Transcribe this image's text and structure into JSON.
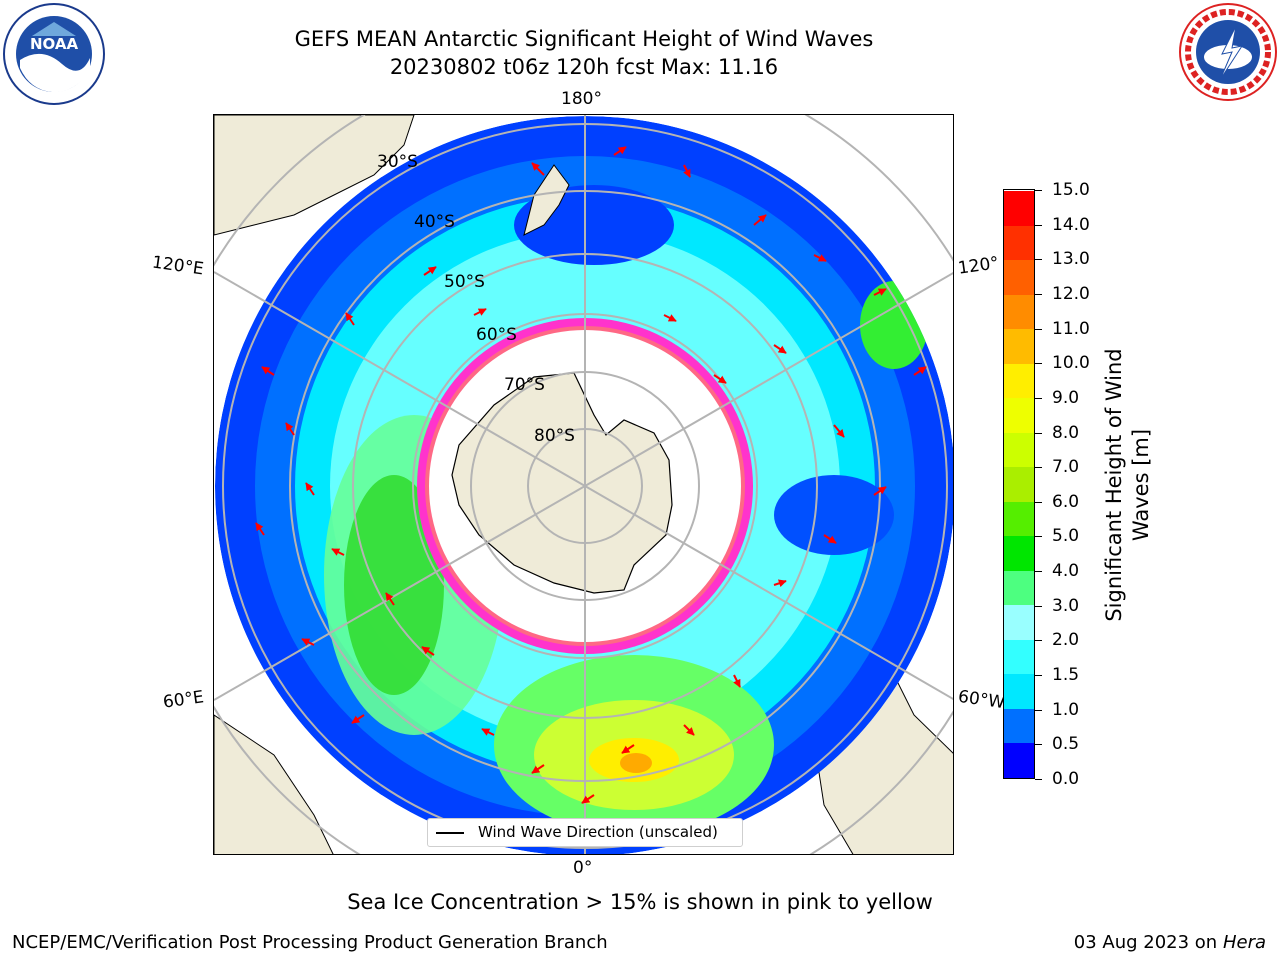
{
  "header": {
    "title_line1": "GEFS MEAN Antarctic Significant Height of Wind Waves",
    "title_line2": "20230802 t06z 120h fcst   Max: 11.16"
  },
  "logos": {
    "left": "NOAA logo",
    "right": "National Weather Service logo"
  },
  "map": {
    "projection": "south-polar-stereographic",
    "lon_labels": [
      "180°",
      "120°E",
      "120°",
      "60°E",
      "60°W",
      "0°"
    ],
    "lat_labels": [
      "30°S",
      "40°S",
      "50°S",
      "60°S",
      "70°S",
      "80°S"
    ],
    "legend_label": "Wind Wave Direction (unscaled)",
    "arrow_color": "#ff0000",
    "land_color": "#efebd8",
    "sea_ice_colors": [
      "#ff33cc",
      "#ffcc00"
    ]
  },
  "colorbar": {
    "title": "Significant Height of Wind Waves [m]",
    "tick_labels": [
      "0.0",
      "0.5",
      "1.0",
      "1.5",
      "2.0",
      "3.0",
      "4.0",
      "5.0",
      "6.0",
      "7.0",
      "8.0",
      "9.0",
      "10.0",
      "11.0",
      "12.0",
      "13.0",
      "14.0",
      "15.0"
    ],
    "colors": [
      "#0000ff",
      "#0070ff",
      "#00e8ff",
      "#33ffff",
      "#99ffff",
      "#4dff80",
      "#00e600",
      "#55ee00",
      "#aaee00",
      "#ccff00",
      "#eeff00",
      "#ffee00",
      "#ffbb00",
      "#ff8c00",
      "#ff6000",
      "#ff3000",
      "#ff0000"
    ]
  },
  "bottom_note": "Sea Ice Concentration > 15% is shown in pink to yellow",
  "footer": {
    "left": "NCEP/EMC/Verification Post Processing Product Generation Branch",
    "right_date": "03 Aug 2023 on",
    "right_machine": "Hera"
  }
}
